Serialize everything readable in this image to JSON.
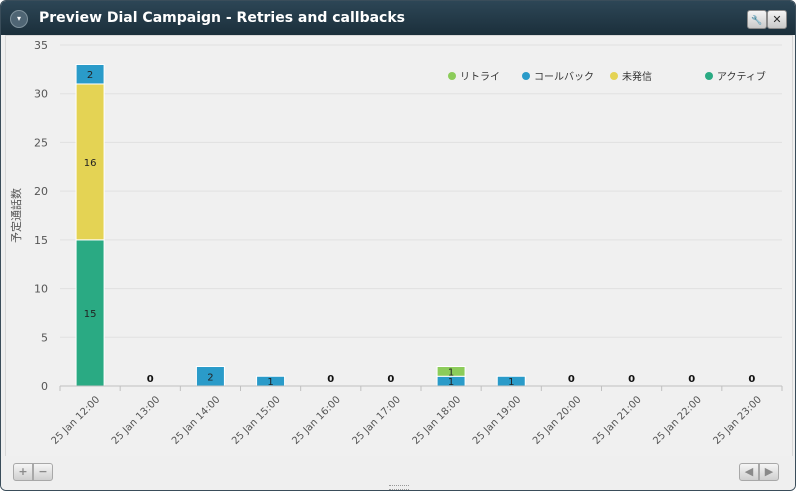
{
  "window": {
    "title": "Preview Dial Campaign - Retries and callbacks"
  },
  "controls": {
    "collapse": "▾",
    "settings": "🔧",
    "close": "✕",
    "zoom_in": "+",
    "zoom_out": "−",
    "prev": "◀",
    "next": "▶"
  },
  "chart_data": {
    "type": "bar",
    "stacked": true,
    "ylabel": "予定通話数",
    "ylim": [
      0,
      35
    ],
    "yticks": [
      0,
      5,
      10,
      15,
      20,
      25,
      30,
      35
    ],
    "grid": true,
    "legend_position": "top-right",
    "categories": [
      "25 Jan 12:00",
      "25 Jan 13:00",
      "25 Jan 14:00",
      "25 Jan 15:00",
      "25 Jan 16:00",
      "25 Jan 17:00",
      "25 Jan 18:00",
      "25 Jan 19:00",
      "25 Jan 20:00",
      "25 Jan 21:00",
      "25 Jan 22:00",
      "25 Jan 23:00"
    ],
    "series": [
      {
        "name": "アクティブ",
        "color": "#2aaa83",
        "values": [
          15,
          0,
          0,
          0,
          0,
          0,
          0,
          0,
          0,
          0,
          0,
          0
        ]
      },
      {
        "name": "未発信",
        "color": "#e4d354",
        "values": [
          16,
          0,
          0,
          0,
          0,
          0,
          0,
          0,
          0,
          0,
          0,
          0
        ]
      },
      {
        "name": "コールバック",
        "color": "#2a9bc9",
        "values": [
          2,
          0,
          2,
          1,
          0,
          0,
          1,
          1,
          0,
          0,
          0,
          0
        ]
      },
      {
        "name": "リトライ",
        "color": "#8ccc5a",
        "values": [
          0,
          0,
          0,
          0,
          0,
          0,
          1,
          0,
          0,
          0,
          0,
          0
        ]
      }
    ],
    "legend_order": [
      "リトライ",
      "コールバック",
      "未発信",
      "アクティブ"
    ]
  }
}
